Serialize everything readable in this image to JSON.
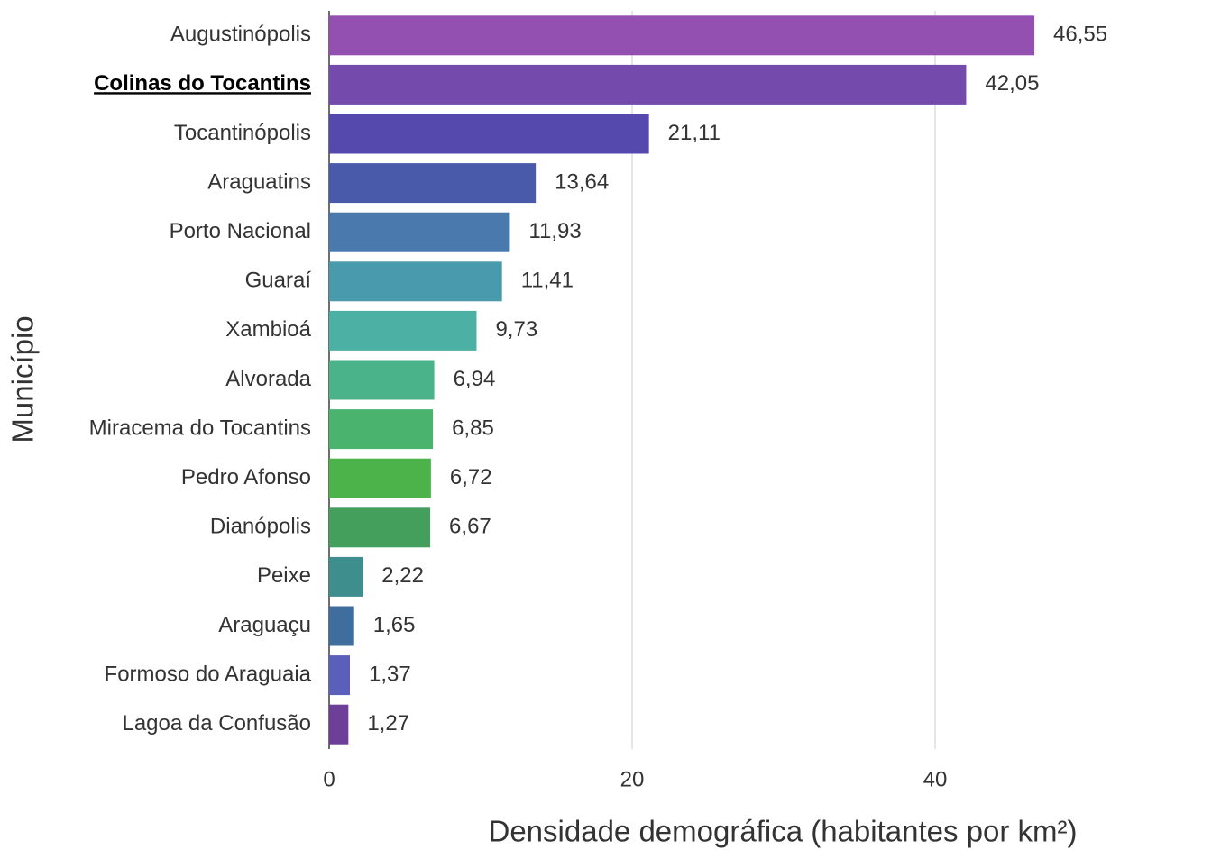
{
  "chart_data": {
    "type": "bar",
    "orientation": "horizontal",
    "x_label": "Densidade demográfica (habitantes por km²)",
    "y_label": "Município",
    "categories": [
      "Augustinópolis",
      "Colinas do Tocantins",
      "Tocantinópolis",
      "Araguatins",
      "Porto Nacional",
      "Guaraí",
      "Xambioá",
      "Alvorada",
      "Miracema do Tocantins",
      "Pedro Afonso",
      "Dianópolis",
      "Peixe",
      "Araguaçu",
      "Formoso do Araguaia",
      "Lagoa da Confusão"
    ],
    "values": [
      46.55,
      42.05,
      21.11,
      13.64,
      11.93,
      11.41,
      9.73,
      6.94,
      6.85,
      6.72,
      6.67,
      2.22,
      1.65,
      1.37,
      1.27
    ],
    "value_labels": [
      "46,55",
      "42,05",
      "21,11",
      "13,64",
      "11,93",
      "11,41",
      "9,73",
      "6,94",
      "6,85",
      "6,72",
      "6,67",
      "2,22",
      "1,65",
      "1,37",
      "1,27"
    ],
    "colors": [
      "#9350b0",
      "#744bac",
      "#5549ad",
      "#4a5aaa",
      "#4a7aad",
      "#4a9aad",
      "#4db0a5",
      "#4bb38a",
      "#4ab36e",
      "#4cb34a",
      "#449e5c",
      "#3f8e8e",
      "#3f6e9e",
      "#5a5fbb",
      "#6e3f99"
    ],
    "highlight_category": "Colinas do Tocantins",
    "xlim": [
      0,
      58
    ],
    "xticks": [
      0,
      20,
      40
    ],
    "grid": true
  }
}
